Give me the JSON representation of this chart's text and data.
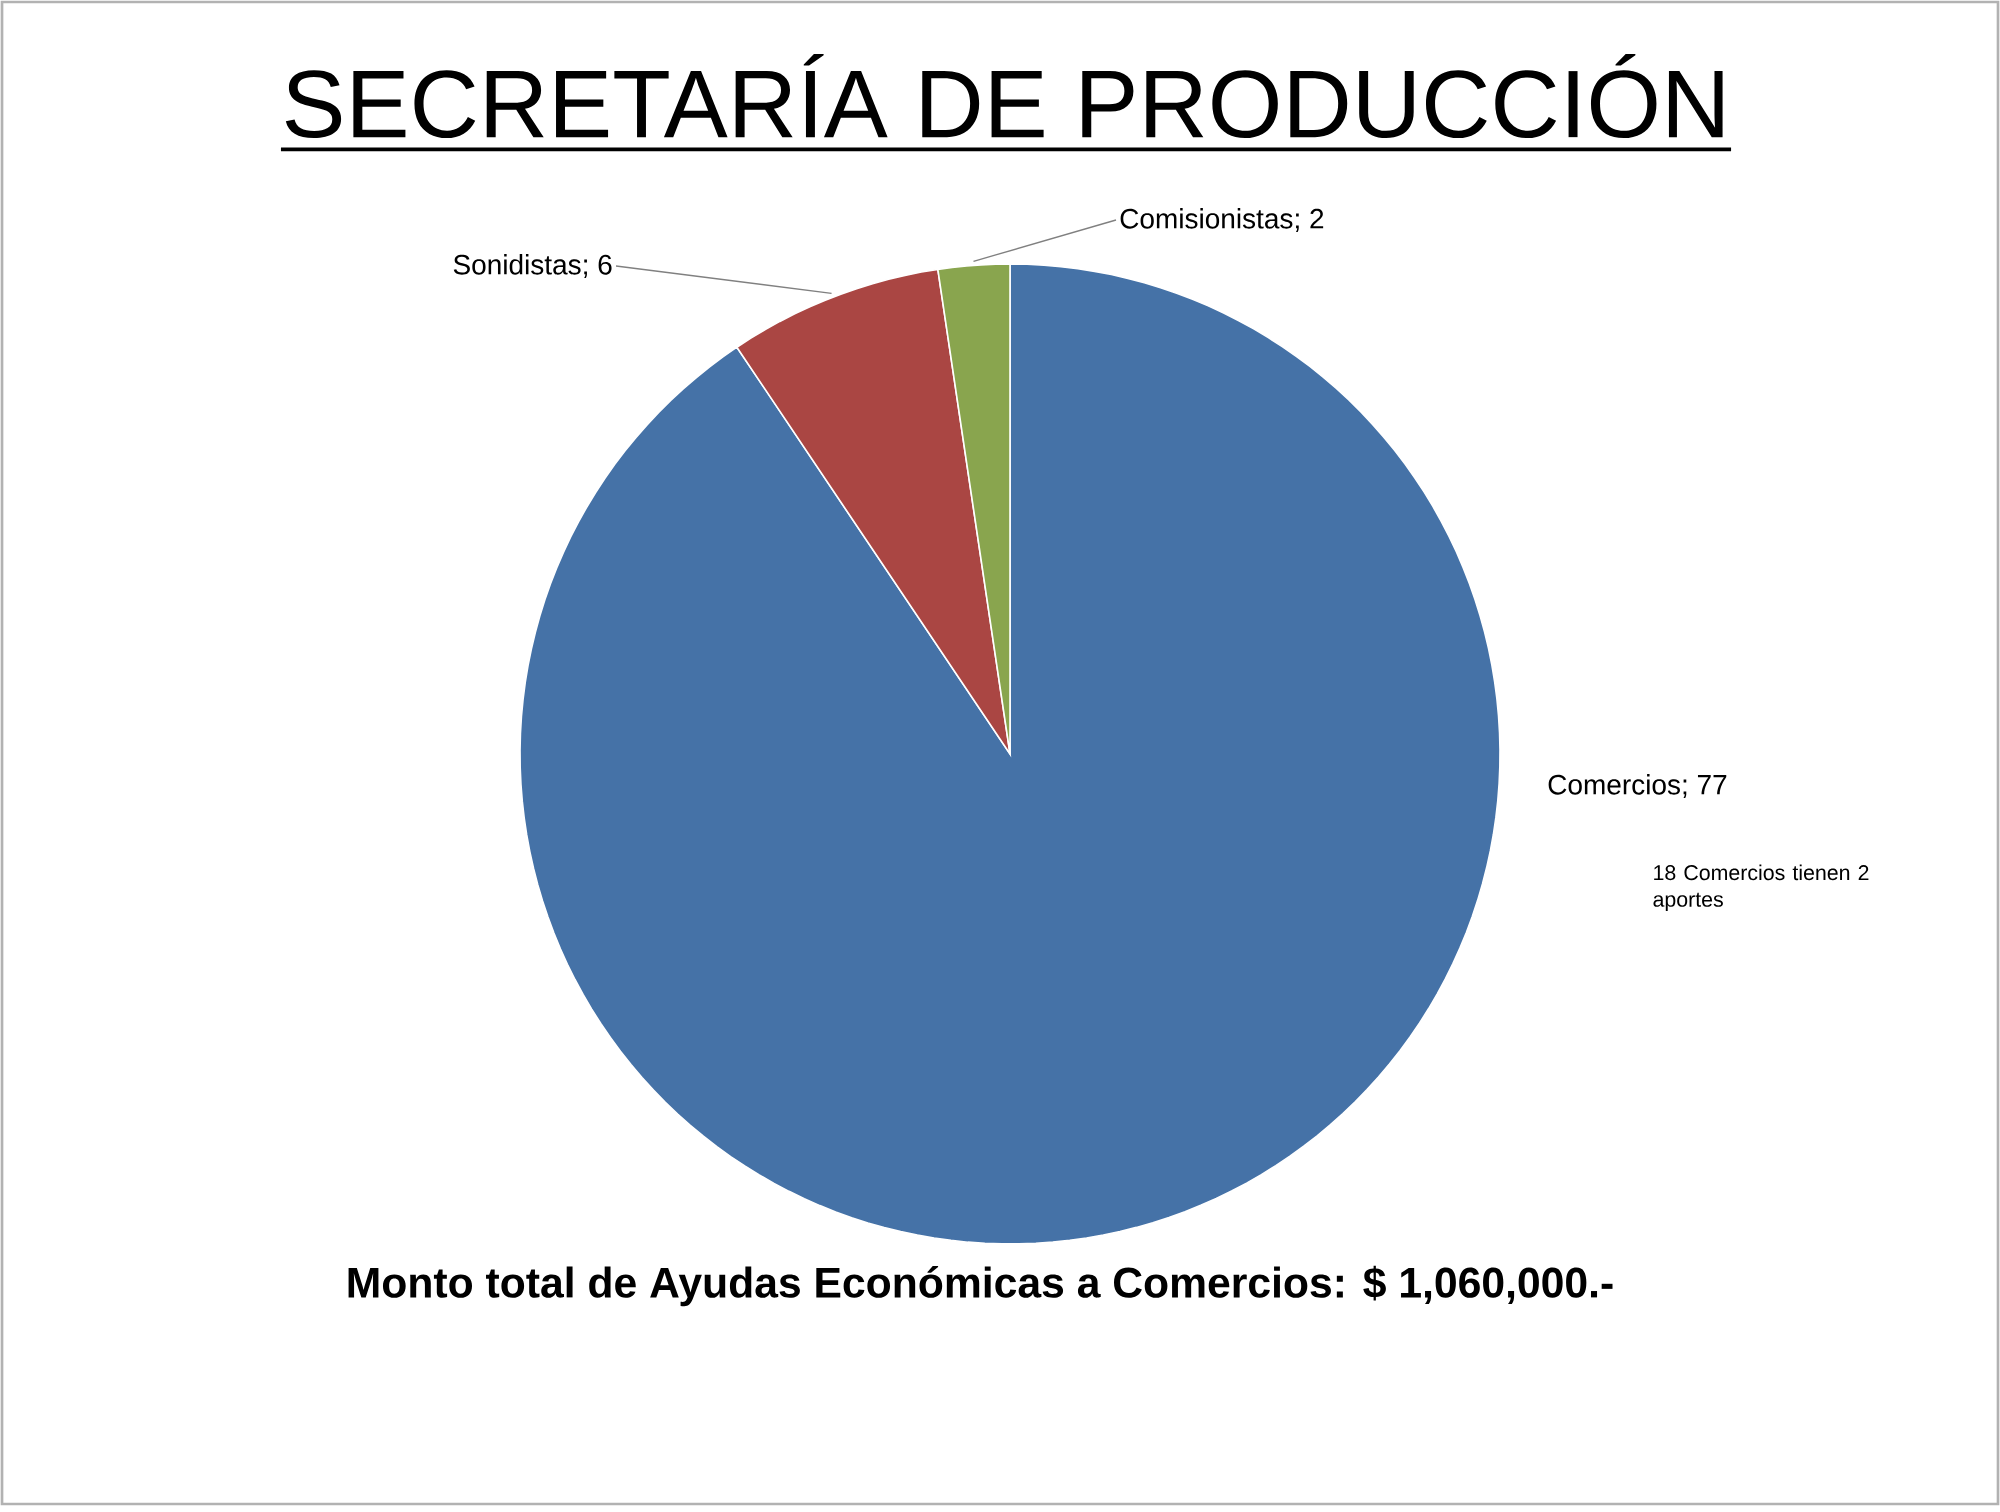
{
  "chart_data": {
    "type": "pie",
    "title": "SECRETARÍA DE PRODUCCIÓN",
    "categories": [
      "Comercios",
      "Sonidistas",
      "Comisionistas"
    ],
    "values": [
      77,
      6,
      2
    ],
    "colors": [
      "#4572a7",
      "#aa4643",
      "#89a54e"
    ],
    "value_labels": [
      "; 77",
      "; 6",
      "; 2"
    ],
    "annotations": [
      "18 Comercios tienen 2 aportes",
      "Monto total de Ayudas Económicas a Comercios: $ 1,060,000.-"
    ]
  }
}
